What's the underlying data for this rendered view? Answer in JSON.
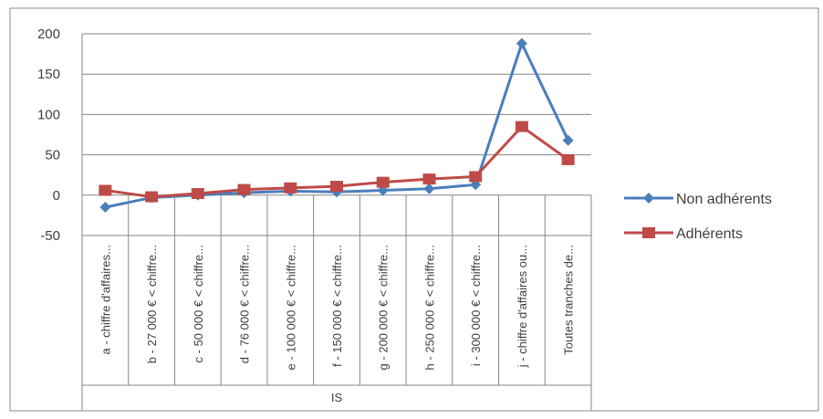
{
  "chart_data": {
    "type": "line",
    "title": "",
    "xlabel": "IS",
    "ylabel": "",
    "ylim": [
      -50,
      200
    ],
    "yticks": [
      200,
      150,
      100,
      50,
      0,
      -50
    ],
    "grid": true,
    "legend_position": "right",
    "categories": [
      "a - chiffre d'affaires...",
      "b - 27 000 € < chiffre...",
      "c - 50 000 € < chiffre...",
      "d - 76 000 € < chiffre...",
      "e - 100 000 € < chiffre...",
      "f - 150 000 € < chiffre...",
      "g - 200 000 € < chiffre...",
      "h - 250 000 € < chiffre...",
      "i - 300 000 € < chiffre...",
      "j - chiffre d'affaires ou...",
      "Toutes tranches de..."
    ],
    "series": [
      {
        "name": "Non adhérents",
        "color": "#4A7EBB",
        "marker": "diamond",
        "values": [
          -15,
          -3,
          0,
          3,
          5,
          4,
          6,
          8,
          13,
          188,
          68
        ]
      },
      {
        "name": "Adhérents",
        "color": "#BE4B48",
        "marker": "square",
        "values": [
          6,
          -2,
          2,
          7,
          9,
          11,
          16,
          20,
          23,
          85,
          44
        ]
      }
    ]
  }
}
